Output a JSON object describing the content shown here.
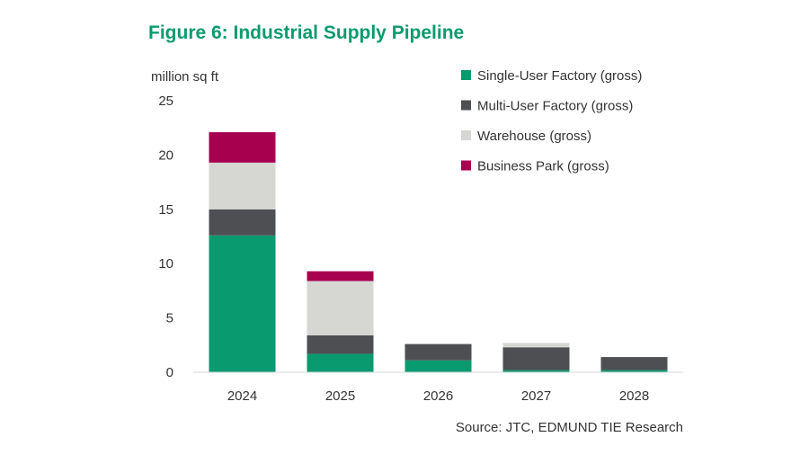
{
  "chart_data": {
    "type": "bar",
    "stacked": true,
    "title": "Figure 6: Industrial Supply Pipeline",
    "ylabel": "million sq ft",
    "xlabel": "",
    "ylim": [
      0,
      25
    ],
    "yticks": [
      0,
      5,
      10,
      15,
      20,
      25
    ],
    "grid": false,
    "legend_position": "top-right",
    "categories": [
      "2024",
      "2025",
      "2026",
      "2027",
      "2028"
    ],
    "series": [
      {
        "name": "Single-User Factory (gross)",
        "color": "#0a9a6f",
        "values": [
          12.6,
          1.7,
          1.1,
          0.2,
          0.2
        ]
      },
      {
        "name": "Multi-User Factory (gross)",
        "color": "#4d4f53",
        "values": [
          2.4,
          1.7,
          1.5,
          2.1,
          1.2
        ]
      },
      {
        "name": "Warehouse (gross)",
        "color": "#d6d6d3",
        "values": [
          4.3,
          5.0,
          0,
          0.4,
          0
        ]
      },
      {
        "name": "Business Park (gross)",
        "color": "#a7004f",
        "values": [
          2.8,
          0.9,
          0,
          0,
          0
        ]
      }
    ],
    "source": "Source: JTC, EDMUND TIE Research"
  }
}
